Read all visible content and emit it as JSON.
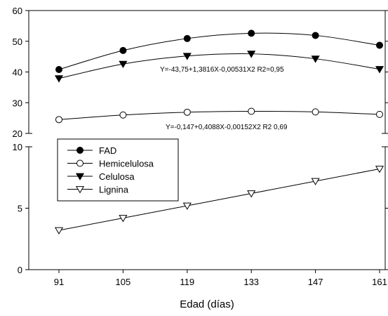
{
  "chart_data": {
    "type": "line",
    "xlabel": "Edad (días)",
    "x": [
      91,
      105,
      119,
      133,
      147,
      161
    ],
    "x_tick_labels": [
      "91",
      "105",
      "119",
      "133",
      "147",
      "161"
    ],
    "axis_break": true,
    "upper_panel": {
      "ylim": [
        20,
        60
      ],
      "y_ticks": [
        20,
        30,
        40,
        50,
        60
      ]
    },
    "lower_panel": {
      "ylim": [
        0,
        10
      ],
      "y_ticks": [
        0,
        5,
        10
      ]
    },
    "series": [
      {
        "name": "FAD",
        "marker": "filled-circle",
        "panel": "upper",
        "values": [
          40.8,
          47.0,
          50.9,
          52.6,
          51.9,
          48.7
        ]
      },
      {
        "name": "Hemicelulosa",
        "marker": "open-circle",
        "panel": "upper",
        "values": [
          24.5,
          26.0,
          26.9,
          27.2,
          27.0,
          26.2
        ]
      },
      {
        "name": "Celulosa",
        "marker": "filled-triangle-down",
        "panel": "upper",
        "values": [
          37.9,
          42.6,
          45.2,
          45.9,
          44.3,
          40.9
        ]
      },
      {
        "name": "Lignina",
        "marker": "open-triangle-down",
        "panel": "lower",
        "values": [
          3.2,
          4.2,
          5.2,
          6.2,
          7.2,
          8.2
        ]
      }
    ],
    "annotations": [
      "Y=-43,75+1,3816X-0,00531X2  R2=0,95",
      "Y=-0,147+0,4088X-0,00152X2  R2 0,69"
    ],
    "legend_position": "lower-left of upper area",
    "grid": false
  }
}
